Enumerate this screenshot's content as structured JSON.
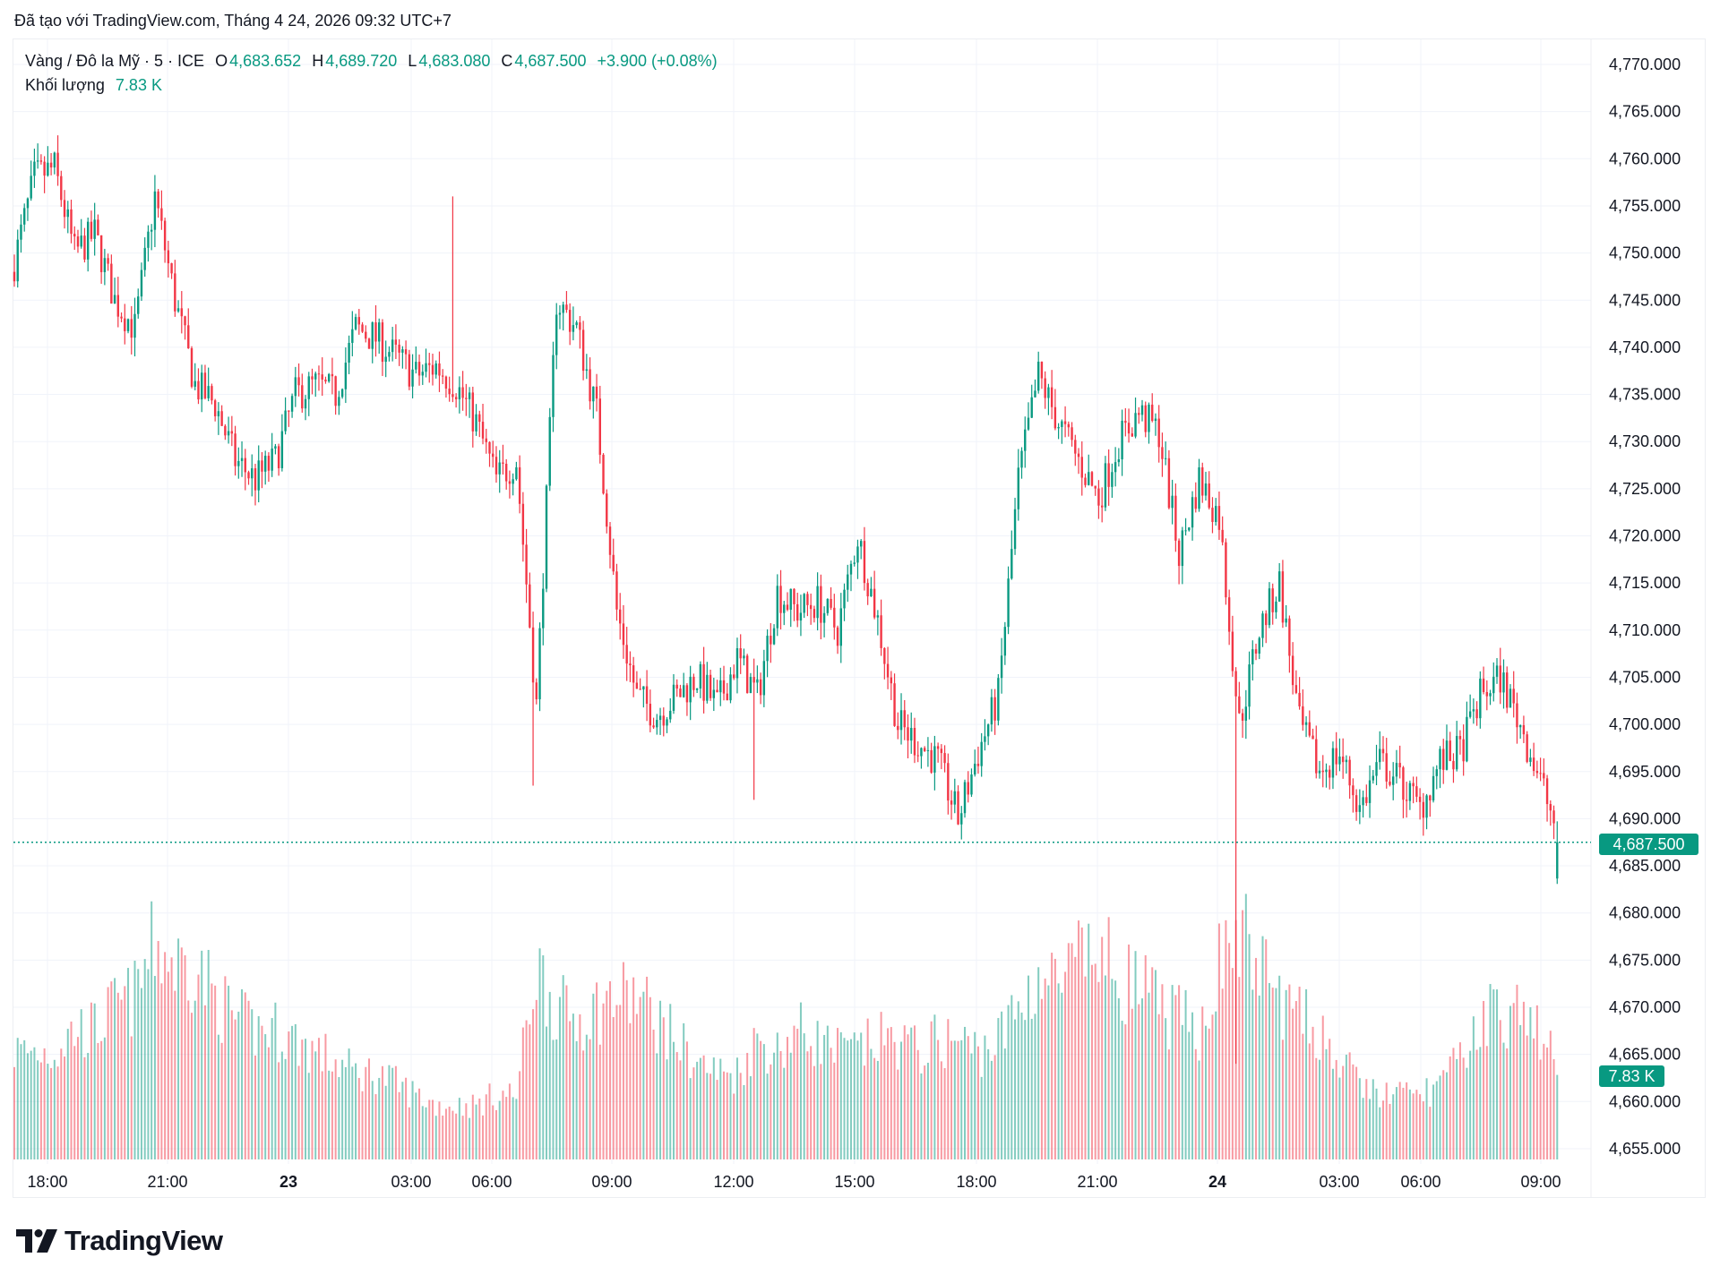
{
  "created_note": "Đã tạo với TradingView.com, Tháng 4 24, 2026 09:32 UTC+7",
  "legend": {
    "symbol": "Vàng / Đô la Mỹ · 5 · ICE",
    "o_label": "O",
    "o_value": "4,683.652",
    "h_label": "H",
    "h_value": "4,689.720",
    "l_label": "L",
    "l_value": "4,683.080",
    "c_label": "C",
    "c_value": "4,687.500",
    "change": "+3.900 (+0.08%)",
    "volume_label": "Khối lượng",
    "volume_value": "7.83 K"
  },
  "current_price_label": "4,687.500",
  "current_volume_label": "7.83 K",
  "logo_text": "TradingView",
  "colors": {
    "up": "#089981",
    "down": "#F23645",
    "grid": "#f0f3fa",
    "text": "#131722"
  },
  "chart_data": {
    "type": "candlestick",
    "interval": "5 min",
    "grid": true,
    "ylim": [
      4652,
      4772
    ],
    "y_ticks": [
      "4,770.000",
      "4,765.000",
      "4,760.000",
      "4,755.000",
      "4,750.000",
      "4,745.000",
      "4,740.000",
      "4,735.000",
      "4,730.000",
      "4,725.000",
      "4,720.000",
      "4,715.000",
      "4,710.000",
      "4,705.000",
      "4,700.000",
      "4,695.000",
      "4,690.000",
      "4,685.000",
      "4,680.000",
      "4,675.000",
      "4,670.000",
      "4,665.000",
      "4,660.000",
      "4,655.000"
    ],
    "x_ticks": [
      "18:00",
      "21:00",
      "23",
      "03:00",
      "06:00",
      "09:00",
      "12:00",
      "15:00",
      "18:00",
      "21:00",
      "24",
      "03:00",
      "06:00",
      "09:00"
    ],
    "close_every_30min": [
      4749,
      4758,
      4759,
      4750,
      4752,
      4745,
      4742,
      4756,
      4745,
      4736,
      4734,
      4728,
      4726,
      4728,
      4735,
      4736,
      4735,
      4742,
      4741,
      4739,
      4737,
      4738,
      4736,
      4732,
      4726,
      4728,
      4702,
      4745,
      4742,
      4733,
      4712,
      4703,
      4701,
      4703,
      4705,
      4702,
      4707,
      4703,
      4714,
      4712,
      4713,
      4710,
      4720,
      4711,
      4700,
      4698,
      4696,
      4690,
      4697,
      4703,
      4726,
      4737,
      4732,
      4728,
      4724,
      4730,
      4733,
      4731,
      4718,
      4726,
      4722,
      4700,
      4710,
      4715,
      4700,
      4695,
      4697,
      4691,
      4696,
      4694,
      4691,
      4696,
      4697,
      4703,
      4705,
      4700,
      4694,
      4687.5
    ],
    "volume_k_every_30min": [
      10,
      10,
      10,
      12,
      12,
      14,
      15,
      20,
      18,
      18,
      15,
      13,
      12,
      12,
      11,
      10,
      9,
      8,
      8,
      7,
      6,
      5,
      5,
      5,
      6,
      6,
      18,
      14,
      13,
      14,
      15,
      15,
      13,
      11,
      9,
      8,
      8,
      11,
      10,
      12,
      11,
      10,
      10,
      11,
      11,
      10,
      11,
      11,
      10,
      11,
      14,
      17,
      16,
      18,
      19,
      17,
      16,
      14,
      13,
      12,
      18,
      21,
      18,
      15,
      13,
      12,
      9,
      7,
      6,
      6,
      6,
      7,
      9,
      13,
      14,
      13,
      12,
      7.83
    ],
    "wick_extremes": [
      {
        "sample": 22,
        "high": 4756
      },
      {
        "sample": 26,
        "low": 4693.5
      },
      {
        "sample": 37,
        "low": 4692
      },
      {
        "sample": 61,
        "low": 4664
      }
    ],
    "last": {
      "open": 4683.652,
      "high": 4689.72,
      "low": 4683.08,
      "close": 4687.5,
      "volume_k": 7.83
    }
  }
}
